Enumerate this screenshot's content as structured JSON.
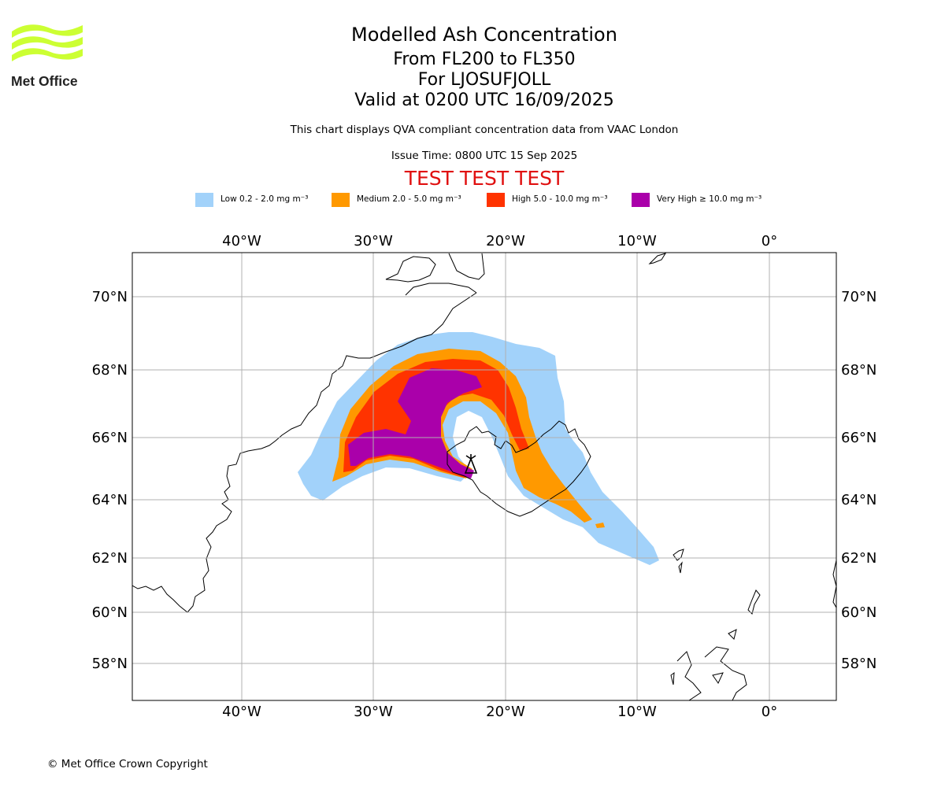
{
  "header": {
    "title": "Modelled Ash Concentration",
    "subtitle_lines": [
      "From FL200 to FL350",
      "For LJOSUFJOLL",
      "Valid at 0200 UTC 16/09/2025"
    ],
    "note": "This chart displays QVA compliant concentration data from VAAC London",
    "issue_time": "Issue Time: 0800 UTC 15 Sep 2025",
    "test_banner": "TEST TEST TEST",
    "test_color": "#e01010"
  },
  "logo": {
    "text": "Met Office",
    "icon": "met-office-waves-icon",
    "color": "#ccff33"
  },
  "legend": [
    {
      "label": "Low 0.2 - 2.0 mg m⁻³",
      "color": "#a2d2fa"
    },
    {
      "label": "Medium 2.0 - 5.0 mg m⁻³",
      "color": "#ff9900"
    },
    {
      "label": "High 5.0 - 10.0 mg m⁻³",
      "color": "#ff3300"
    },
    {
      "label": "Very High ≥ 10.0 mg m⁻³",
      "color": "#aa00aa"
    }
  ],
  "map": {
    "longitude_ticks": [
      "40°W",
      "30°W",
      "20°W",
      "10°W",
      "0°"
    ],
    "latitude_ticks": [
      "70°N",
      "68°N",
      "66°N",
      "64°N",
      "62°N",
      "60°N",
      "58°N"
    ],
    "volcano_marker": "volcano-symbol-icon",
    "grid": true
  },
  "footer": {
    "copyright": "© Met Office Crown Copyright"
  }
}
